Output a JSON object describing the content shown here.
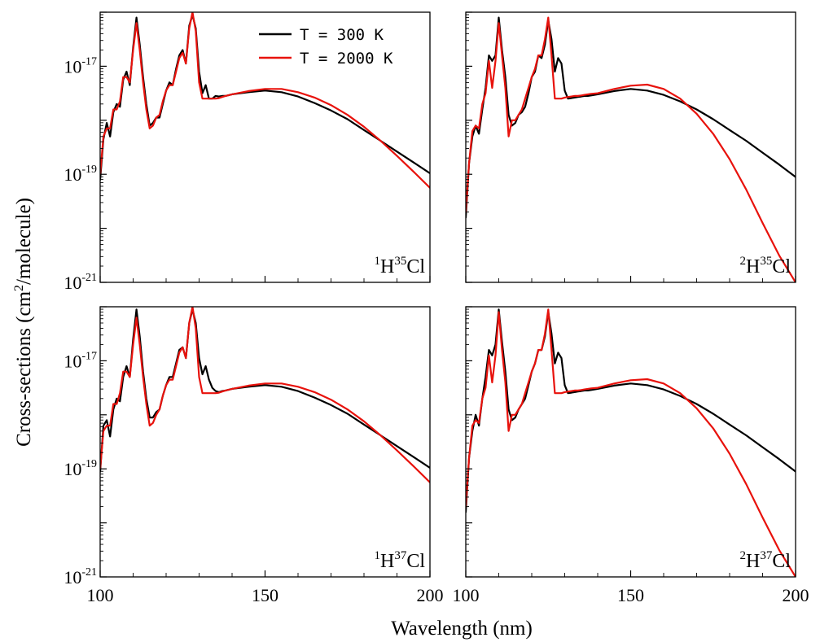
{
  "figure": {
    "ylabel_prefix": "Cross-sections (cm",
    "ylabel_sup": "2",
    "ylabel_suffix": "/molecule)",
    "xlabel": "Wavelength (nm)"
  },
  "chart_data": [
    {
      "type": "line",
      "panel_label": {
        "mass": "1",
        "element1": "H",
        "iso": "35",
        "element2": "Cl"
      },
      "xlabel": "Wavelength (nm)",
      "ylabel": "Cross-sections (cm2/molecule)",
      "xlim": [
        100,
        200
      ],
      "ylim_log10": [
        -21,
        -16
      ],
      "yscale": "log",
      "xticks": [
        "100",
        "150",
        "200"
      ],
      "yticks": [
        {
          "base": "10",
          "exp": "-21"
        },
        {
          "base": "10",
          "exp": "-19"
        },
        {
          "base": "10",
          "exp": "-17"
        }
      ],
      "legend": {
        "placement": "top-right",
        "entries": [
          "T = 300 K",
          "T = 2000 K"
        ]
      },
      "series": [
        {
          "name": "T = 300 K",
          "color": "#000000",
          "x": [
            100,
            101,
            102,
            103,
            104,
            105,
            106,
            107,
            108,
            109,
            110,
            111,
            112,
            113,
            114,
            115,
            116,
            117,
            118,
            119,
            120,
            121,
            122,
            123,
            124,
            125,
            126,
            127,
            128,
            129,
            130,
            131,
            132,
            133,
            134,
            135,
            136,
            137,
            138,
            140,
            145,
            150,
            155,
            160,
            165,
            170,
            175,
            180,
            185,
            190,
            195,
            200
          ],
          "log10_y": [
            -19.1,
            -18.35,
            -18.05,
            -18.3,
            -17.85,
            -17.7,
            -17.75,
            -17.25,
            -17.1,
            -17.35,
            -16.65,
            -16.1,
            -16.6,
            -17.2,
            -17.7,
            -18.1,
            -18.05,
            -17.95,
            -17.95,
            -17.7,
            -17.45,
            -17.3,
            -17.35,
            -17.05,
            -16.8,
            -16.7,
            -16.95,
            -16.25,
            -16.05,
            -16.3,
            -17.1,
            -17.5,
            -17.35,
            -17.6,
            -17.6,
            -17.55,
            -17.56,
            -17.55,
            -17.55,
            -17.52,
            -17.48,
            -17.45,
            -17.48,
            -17.56,
            -17.68,
            -17.82,
            -17.98,
            -18.18,
            -18.38,
            -18.58,
            -18.78,
            -18.98
          ]
        },
        {
          "name": "T = 2000 K",
          "color": "#e8120c",
          "x": [
            100,
            101,
            102,
            103,
            104,
            105,
            106,
            107,
            108,
            109,
            110,
            111,
            112,
            113,
            114,
            115,
            116,
            117,
            118,
            119,
            120,
            121,
            122,
            123,
            124,
            125,
            126,
            127,
            128,
            129,
            130,
            131,
            132,
            133,
            134,
            135,
            136,
            137,
            138,
            140,
            145,
            150,
            155,
            160,
            165,
            170,
            175,
            180,
            185,
            190,
            195,
            200
          ],
          "log10_y": [
            -19.0,
            -18.3,
            -18.15,
            -18.15,
            -17.8,
            -17.8,
            -17.65,
            -17.2,
            -17.2,
            -17.3,
            -16.7,
            -16.2,
            -16.7,
            -17.3,
            -17.8,
            -18.15,
            -18.1,
            -17.95,
            -17.9,
            -17.65,
            -17.45,
            -17.35,
            -17.35,
            -17.1,
            -16.85,
            -16.75,
            -16.95,
            -16.3,
            -16.0,
            -16.35,
            -17.3,
            -17.6,
            -17.6,
            -17.6,
            -17.6,
            -17.6,
            -17.59,
            -17.57,
            -17.55,
            -17.52,
            -17.46,
            -17.42,
            -17.42,
            -17.48,
            -17.58,
            -17.72,
            -17.9,
            -18.12,
            -18.38,
            -18.66,
            -18.95,
            -19.25
          ]
        }
      ]
    },
    {
      "type": "line",
      "panel_label": {
        "mass": "2",
        "element1": "H",
        "iso": "35",
        "element2": "Cl"
      },
      "xlabel": "Wavelength (nm)",
      "ylabel": "Cross-sections (cm2/molecule)",
      "xlim": [
        100,
        200
      ],
      "ylim_log10": [
        -21,
        -16
      ],
      "yscale": "log",
      "xticks": [
        "100",
        "150",
        "200"
      ],
      "yticks": [],
      "series": [
        {
          "name": "T = 300 K",
          "color": "#000000",
          "x": [
            100,
            101,
            102,
            103,
            104,
            105,
            106,
            107,
            108,
            109,
            110,
            111,
            112,
            113,
            114,
            115,
            116,
            117,
            118,
            119,
            120,
            121,
            122,
            123,
            124,
            125,
            126,
            127,
            128,
            129,
            130,
            131,
            132,
            133,
            134,
            135,
            136,
            137,
            138,
            140,
            145,
            150,
            155,
            160,
            165,
            170,
            175,
            180,
            185,
            190,
            195,
            200
          ],
          "log10_y": [
            -19.8,
            -18.8,
            -18.3,
            -18.1,
            -18.25,
            -17.8,
            -17.4,
            -16.8,
            -16.9,
            -16.8,
            -16.1,
            -16.7,
            -17.2,
            -17.9,
            -18.1,
            -18.05,
            -17.9,
            -17.85,
            -17.75,
            -17.5,
            -17.2,
            -17.1,
            -16.8,
            -16.85,
            -16.6,
            -16.15,
            -16.5,
            -17.1,
            -16.85,
            -16.95,
            -17.45,
            -17.6,
            -17.59,
            -17.58,
            -17.57,
            -17.56,
            -17.55,
            -17.55,
            -17.54,
            -17.52,
            -17.46,
            -17.42,
            -17.45,
            -17.53,
            -17.65,
            -17.8,
            -17.98,
            -18.18,
            -18.38,
            -18.6,
            -18.82,
            -19.05
          ]
        },
        {
          "name": "T = 2000 K",
          "color": "#e8120c",
          "x": [
            100,
            101,
            102,
            103,
            104,
            105,
            106,
            107,
            108,
            109,
            110,
            111,
            112,
            113,
            114,
            115,
            116,
            117,
            118,
            119,
            120,
            121,
            122,
            123,
            124,
            125,
            126,
            127,
            128,
            129,
            130,
            131,
            132,
            133,
            134,
            135,
            136,
            137,
            138,
            140,
            145,
            150,
            155,
            160,
            165,
            170,
            175,
            180,
            185,
            190,
            195,
            200
          ],
          "log10_y": [
            -19.7,
            -18.8,
            -18.2,
            -18.1,
            -18.15,
            -17.7,
            -17.5,
            -16.9,
            -17.4,
            -16.9,
            -16.2,
            -16.8,
            -17.4,
            -18.3,
            -18.0,
            -18.0,
            -17.9,
            -17.8,
            -17.6,
            -17.4,
            -17.2,
            -17.05,
            -16.8,
            -16.8,
            -16.5,
            -16.1,
            -16.8,
            -17.6,
            -17.6,
            -17.6,
            -17.58,
            -17.57,
            -17.56,
            -17.55,
            -17.55,
            -17.54,
            -17.53,
            -17.52,
            -17.51,
            -17.5,
            -17.42,
            -17.36,
            -17.34,
            -17.42,
            -17.6,
            -17.88,
            -18.25,
            -18.72,
            -19.28,
            -19.9,
            -20.5,
            -21.0
          ]
        }
      ]
    },
    {
      "type": "line",
      "panel_label": {
        "mass": "1",
        "element1": "H",
        "iso": "37",
        "element2": "Cl"
      },
      "xlabel": "Wavelength (nm)",
      "ylabel": "Cross-sections (cm2/molecule)",
      "xlim": [
        100,
        200
      ],
      "ylim_log10": [
        -21,
        -16
      ],
      "yscale": "log",
      "xticks": [
        "100",
        "150",
        "200"
      ],
      "yticks": [
        {
          "base": "10",
          "exp": "-21"
        },
        {
          "base": "10",
          "exp": "-19"
        },
        {
          "base": "10",
          "exp": "-17"
        }
      ],
      "series": [
        {
          "name": "T = 300 K",
          "color": "#000000",
          "x": [
            100,
            101,
            102,
            103,
            104,
            105,
            106,
            107,
            108,
            109,
            110,
            111,
            112,
            113,
            114,
            115,
            116,
            117,
            118,
            119,
            120,
            121,
            122,
            123,
            124,
            125,
            126,
            127,
            128,
            129,
            130,
            131,
            132,
            133,
            134,
            135,
            136,
            137,
            138,
            140,
            145,
            150,
            155,
            160,
            165,
            170,
            175,
            180,
            185,
            190,
            195,
            200
          ],
          "log10_y": [
            -19.05,
            -18.2,
            -18.1,
            -18.4,
            -17.9,
            -17.7,
            -17.75,
            -17.3,
            -17.1,
            -17.3,
            -16.6,
            -16.05,
            -16.55,
            -17.2,
            -17.7,
            -18.05,
            -18.05,
            -17.95,
            -17.9,
            -17.65,
            -17.45,
            -17.3,
            -17.3,
            -17.05,
            -16.8,
            -16.75,
            -16.95,
            -16.3,
            -16.05,
            -16.3,
            -16.95,
            -17.25,
            -17.1,
            -17.35,
            -17.5,
            -17.56,
            -17.58,
            -17.56,
            -17.55,
            -17.52,
            -17.48,
            -17.45,
            -17.48,
            -17.56,
            -17.68,
            -17.82,
            -17.98,
            -18.18,
            -18.38,
            -18.58,
            -18.78,
            -18.98
          ]
        },
        {
          "name": "T = 2000 K",
          "color": "#e8120c",
          "x": [
            100,
            101,
            102,
            103,
            104,
            105,
            106,
            107,
            108,
            109,
            110,
            111,
            112,
            113,
            114,
            115,
            116,
            117,
            118,
            119,
            120,
            121,
            122,
            123,
            124,
            125,
            126,
            127,
            128,
            129,
            130,
            131,
            132,
            133,
            134,
            135,
            136,
            137,
            138,
            140,
            145,
            150,
            155,
            160,
            165,
            170,
            175,
            180,
            185,
            190,
            195,
            200
          ],
          "log10_y": [
            -19.0,
            -18.3,
            -18.2,
            -18.2,
            -17.8,
            -17.8,
            -17.6,
            -17.2,
            -17.2,
            -17.3,
            -16.7,
            -16.2,
            -16.7,
            -17.3,
            -17.8,
            -18.2,
            -18.15,
            -18.0,
            -17.9,
            -17.65,
            -17.45,
            -17.35,
            -17.35,
            -17.1,
            -16.85,
            -16.75,
            -16.95,
            -16.3,
            -16.0,
            -16.4,
            -17.3,
            -17.6,
            -17.6,
            -17.6,
            -17.6,
            -17.6,
            -17.59,
            -17.57,
            -17.55,
            -17.52,
            -17.46,
            -17.42,
            -17.42,
            -17.48,
            -17.58,
            -17.72,
            -17.9,
            -18.12,
            -18.38,
            -18.66,
            -18.95,
            -19.25
          ]
        }
      ]
    },
    {
      "type": "line",
      "panel_label": {
        "mass": "2",
        "element1": "H",
        "iso": "37",
        "element2": "Cl"
      },
      "xlabel": "Wavelength (nm)",
      "ylabel": "Cross-sections (cm2/molecule)",
      "xlim": [
        100,
        200
      ],
      "ylim_log10": [
        -21,
        -16
      ],
      "yscale": "log",
      "xticks": [
        "100",
        "150",
        "200"
      ],
      "yticks": [],
      "series": [
        {
          "name": "T = 300 K",
          "color": "#000000",
          "x": [
            100,
            101,
            102,
            103,
            104,
            105,
            106,
            107,
            108,
            109,
            110,
            111,
            112,
            113,
            114,
            115,
            116,
            117,
            118,
            119,
            120,
            121,
            122,
            123,
            124,
            125,
            126,
            127,
            128,
            129,
            130,
            131,
            132,
            133,
            134,
            135,
            136,
            137,
            138,
            140,
            145,
            150,
            155,
            160,
            165,
            170,
            175,
            180,
            185,
            190,
            195,
            200
          ],
          "log10_y": [
            -19.8,
            -18.8,
            -18.3,
            -18.0,
            -18.2,
            -17.7,
            -17.3,
            -16.8,
            -16.9,
            -16.7,
            -16.05,
            -16.65,
            -17.2,
            -17.9,
            -18.1,
            -18.05,
            -17.9,
            -17.8,
            -17.7,
            -17.45,
            -17.2,
            -17.05,
            -16.8,
            -16.8,
            -16.55,
            -16.1,
            -16.5,
            -17.05,
            -16.85,
            -16.95,
            -17.45,
            -17.6,
            -17.59,
            -17.58,
            -17.57,
            -17.56,
            -17.55,
            -17.55,
            -17.54,
            -17.52,
            -17.46,
            -17.42,
            -17.45,
            -17.53,
            -17.65,
            -17.8,
            -17.98,
            -18.18,
            -18.38,
            -18.6,
            -18.82,
            -19.05
          ]
        },
        {
          "name": "T = 2000 K",
          "color": "#e8120c",
          "x": [
            100,
            101,
            102,
            103,
            104,
            105,
            106,
            107,
            108,
            109,
            110,
            111,
            112,
            113,
            114,
            115,
            116,
            117,
            118,
            119,
            120,
            121,
            122,
            123,
            124,
            125,
            126,
            127,
            128,
            129,
            130,
            131,
            132,
            133,
            134,
            135,
            136,
            137,
            138,
            140,
            145,
            150,
            155,
            160,
            165,
            170,
            175,
            180,
            185,
            190,
            195,
            200
          ],
          "log10_y": [
            -19.7,
            -18.8,
            -18.2,
            -18.1,
            -18.15,
            -17.7,
            -17.5,
            -16.9,
            -17.4,
            -16.9,
            -16.1,
            -16.8,
            -17.4,
            -18.3,
            -18.0,
            -18.0,
            -17.9,
            -17.8,
            -17.6,
            -17.4,
            -17.2,
            -17.05,
            -16.8,
            -16.8,
            -16.5,
            -16.05,
            -16.8,
            -17.6,
            -17.6,
            -17.6,
            -17.58,
            -17.57,
            -17.56,
            -17.55,
            -17.55,
            -17.54,
            -17.53,
            -17.52,
            -17.51,
            -17.5,
            -17.42,
            -17.36,
            -17.34,
            -17.42,
            -17.6,
            -17.88,
            -18.25,
            -18.72,
            -19.28,
            -19.9,
            -20.5,
            -21.0
          ]
        }
      ]
    }
  ]
}
